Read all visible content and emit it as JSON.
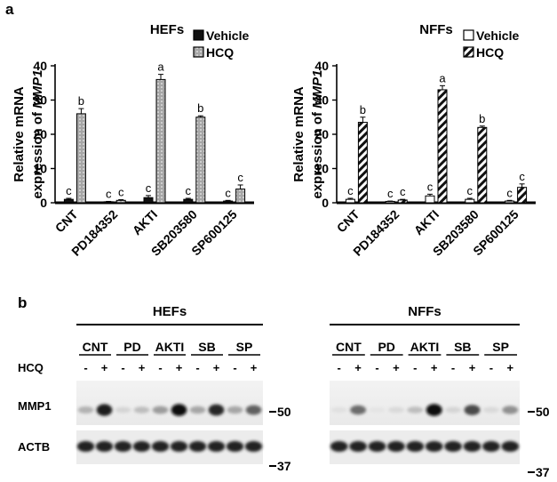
{
  "panel_a_label": "a",
  "panel_b_label": "b",
  "chart_data": [
    {
      "type": "bar",
      "title": "HEFs",
      "ylabel_lines": [
        "Relative mRNA",
        "expression of "
      ],
      "ylabel_italic": "MMP1",
      "ylim": [
        0,
        40
      ],
      "yticks": [
        0,
        10,
        20,
        30,
        40
      ],
      "categories": [
        "CNT",
        "PD184352",
        "AKTI",
        "SB203580",
        "SP600125"
      ],
      "series": [
        {
          "name": "Vehicle",
          "fill": "#111111",
          "pattern": "solid",
          "values": [
            1.0,
            0.3,
            1.5,
            1.0,
            0.5
          ],
          "errors": [
            0.3,
            0.1,
            0.6,
            0.3,
            0.2
          ],
          "labels": [
            "c",
            "c",
            "c",
            "c",
            "c"
          ]
        },
        {
          "name": "HCQ",
          "fill": "#a6a6a6",
          "pattern": "dotted",
          "values": [
            26,
            0.7,
            36,
            25,
            4
          ],
          "errors": [
            1.5,
            0.2,
            1.5,
            0.4,
            1.2
          ],
          "labels": [
            "b",
            "c",
            "a",
            "b",
            "c"
          ]
        }
      ]
    },
    {
      "type": "bar",
      "title": "NFFs",
      "ylabel_lines": [
        "Relative mRNA",
        "expression of "
      ],
      "ylabel_italic": "MMP1",
      "ylim": [
        0,
        40
      ],
      "yticks": [
        0,
        10,
        20,
        30,
        40
      ],
      "categories": [
        "CNT",
        "PD184352",
        "AKTI",
        "SB203580",
        "SP600125"
      ],
      "series": [
        {
          "name": "Vehicle",
          "fill": "#ffffff",
          "pattern": "open",
          "values": [
            1.0,
            0.4,
            2.0,
            1.0,
            0.5
          ],
          "errors": [
            0.3,
            0.1,
            0.5,
            0.3,
            0.2
          ],
          "labels": [
            "c",
            "c",
            "c",
            "c",
            "c"
          ]
        },
        {
          "name": "HCQ",
          "fill": "#ffffff",
          "pattern": "hatched",
          "values": [
            23.5,
            0.8,
            33,
            22,
            4.5
          ],
          "errors": [
            1.5,
            0.2,
            1.2,
            0.4,
            1.0
          ],
          "labels": [
            "b",
            "c",
            "a",
            "b",
            "c"
          ]
        }
      ]
    }
  ],
  "blots": [
    {
      "title": "HEFs",
      "groups": [
        "CNT",
        "PD",
        "AKTI",
        "SB",
        "SP"
      ],
      "treatment_label": "HCQ",
      "signs": [
        "-",
        "+",
        "-",
        "+",
        "-",
        "+",
        "-",
        "+",
        "-",
        "+"
      ],
      "mmp1_intensity": [
        0.25,
        0.9,
        0.1,
        0.2,
        0.35,
        0.95,
        0.3,
        0.85,
        0.3,
        0.6
      ],
      "actb_intensity": [
        0.9,
        0.9,
        0.9,
        0.9,
        0.9,
        0.9,
        0.9,
        0.9,
        0.9,
        0.9
      ],
      "row_labels": [
        "MMP1",
        "ACTB"
      ],
      "markers": [
        "50",
        "37"
      ]
    },
    {
      "title": "NFFs",
      "groups": [
        "CNT",
        "PD",
        "AKTI",
        "SB",
        "SP"
      ],
      "treatment_label": "",
      "signs": [
        "-",
        "+",
        "-",
        "+",
        "-",
        "+",
        "-",
        "+",
        "-",
        "+"
      ],
      "mmp1_intensity": [
        0.05,
        0.55,
        0.03,
        0.08,
        0.2,
        0.95,
        0.1,
        0.7,
        0.08,
        0.4
      ],
      "actb_intensity": [
        0.9,
        0.9,
        0.9,
        0.9,
        0.9,
        0.9,
        0.9,
        0.9,
        0.9,
        0.9
      ],
      "row_labels": [
        "",
        ""
      ],
      "markers": [
        "50",
        "37"
      ]
    }
  ]
}
